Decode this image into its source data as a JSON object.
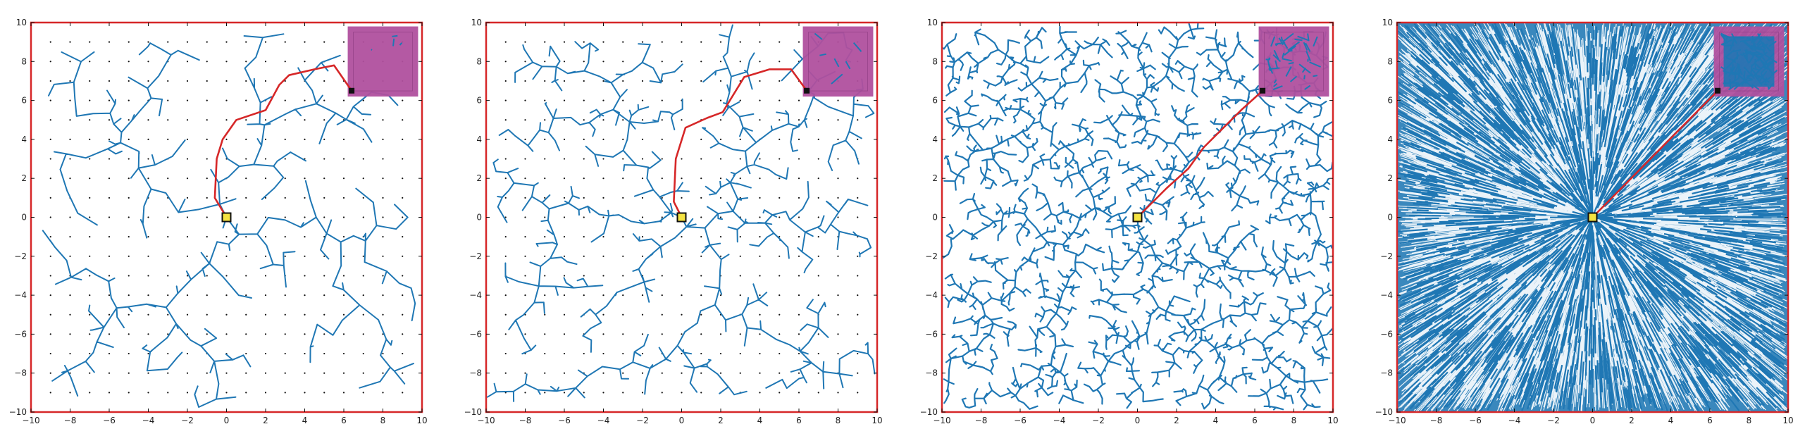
{
  "chart_data": [
    {
      "type": "tree-plot",
      "xlim": [
        -10,
        10
      ],
      "ylim": [
        -10,
        10
      ],
      "xticks": [
        "−10",
        "−8",
        "−6",
        "−4",
        "−2",
        "0",
        "2",
        "4",
        "6",
        "8",
        "10"
      ],
      "yticks": [
        "10",
        "8",
        "6",
        "4",
        "2",
        "0",
        "−2",
        "−4",
        "−6",
        "−8",
        "−10"
      ],
      "root": [
        0,
        0
      ],
      "goal_region": {
        "x": [
          6.2,
          9.8
        ],
        "y": [
          6.2,
          9.8
        ]
      },
      "sample_points": true,
      "tree_density": "sparse",
      "path": [
        [
          0,
          0
        ],
        [
          -0.6,
          1
        ],
        [
          -0.5,
          3
        ],
        [
          -0.2,
          4
        ],
        [
          0.5,
          5
        ],
        [
          2,
          5.5
        ],
        [
          2.7,
          6.8
        ],
        [
          3.2,
          7.3
        ],
        [
          4.5,
          7.6
        ],
        [
          5.5,
          7.8
        ],
        [
          6.4,
          6.5
        ]
      ],
      "colors": {
        "tree": "#1f77b4",
        "path": "#d62728",
        "border": "#d62728",
        "goal": "#b0509e",
        "root": "#f5e342"
      }
    },
    {
      "type": "tree-plot",
      "xlim": [
        -10,
        10
      ],
      "ylim": [
        -10,
        10
      ],
      "xticks": [
        "−10",
        "−8",
        "−6",
        "−4",
        "−2",
        "0",
        "2",
        "4",
        "6",
        "8",
        "10"
      ],
      "yticks": [
        "10",
        "8",
        "6",
        "4",
        "2",
        "0",
        "−2",
        "−4",
        "−6",
        "−8",
        "−10"
      ],
      "root": [
        0,
        0
      ],
      "goal_region": {
        "x": [
          6.2,
          9.8
        ],
        "y": [
          6.2,
          9.8
        ]
      },
      "sample_points": true,
      "tree_density": "medium",
      "path": [
        [
          0,
          0
        ],
        [
          -0.4,
          0.8
        ],
        [
          -0.3,
          3
        ],
        [
          0.2,
          4.6
        ],
        [
          1.3,
          5.1
        ],
        [
          2.1,
          5.4
        ],
        [
          3.2,
          7.2
        ],
        [
          4.5,
          7.6
        ],
        [
          5.6,
          7.6
        ],
        [
          6.4,
          6.5
        ]
      ],
      "colors": {
        "tree": "#1f77b4",
        "path": "#d62728",
        "border": "#d62728",
        "goal": "#b0509e",
        "root": "#f5e342"
      }
    },
    {
      "type": "tree-plot",
      "xlim": [
        -10,
        10
      ],
      "ylim": [
        -10,
        10
      ],
      "xticks": [
        "−10",
        "−8",
        "−6",
        "−4",
        "−2",
        "0",
        "2",
        "4",
        "6",
        "8",
        "10"
      ],
      "yticks": [
        "10",
        "8",
        "6",
        "4",
        "2",
        "0",
        "−2",
        "−4",
        "−6",
        "−8",
        "−10"
      ],
      "root": [
        0,
        0
      ],
      "goal_region": {
        "x": [
          6.2,
          9.8
        ],
        "y": [
          6.2,
          9.8
        ]
      },
      "sample_points": false,
      "tree_density": "dense",
      "path": [
        [
          0,
          0
        ],
        [
          1.5,
          1.5
        ],
        [
          2.6,
          2.5
        ],
        [
          3.4,
          3.6
        ],
        [
          4.3,
          4.5
        ],
        [
          5.3,
          5.5
        ],
        [
          6.4,
          6.5
        ]
      ],
      "colors": {
        "tree": "#1f77b4",
        "path": "#d62728",
        "border": "#d62728",
        "goal": "#b0509e",
        "root": "#f5e342"
      }
    },
    {
      "type": "tree-plot",
      "xlim": [
        -10,
        10
      ],
      "ylim": [
        -10,
        10
      ],
      "xticks": [
        "−10",
        "−8",
        "−6",
        "−4",
        "−2",
        "0",
        "2",
        "4",
        "6",
        "8",
        "10"
      ],
      "yticks": [
        "10",
        "8",
        "6",
        "4",
        "2",
        "0",
        "−2",
        "−4",
        "−6",
        "−8",
        "−10"
      ],
      "root": [
        0,
        0
      ],
      "goal_region": {
        "x": [
          6.2,
          9.8
        ],
        "y": [
          6.2,
          9.8
        ]
      },
      "sample_points": false,
      "tree_density": "very-dense",
      "path": [
        [
          0,
          0
        ],
        [
          6.4,
          6.5
        ]
      ],
      "colors": {
        "tree": "#1f77b4",
        "path": "#d62728",
        "border": "#d62728",
        "goal": "#b0509e",
        "root": "#f5e342"
      }
    }
  ]
}
